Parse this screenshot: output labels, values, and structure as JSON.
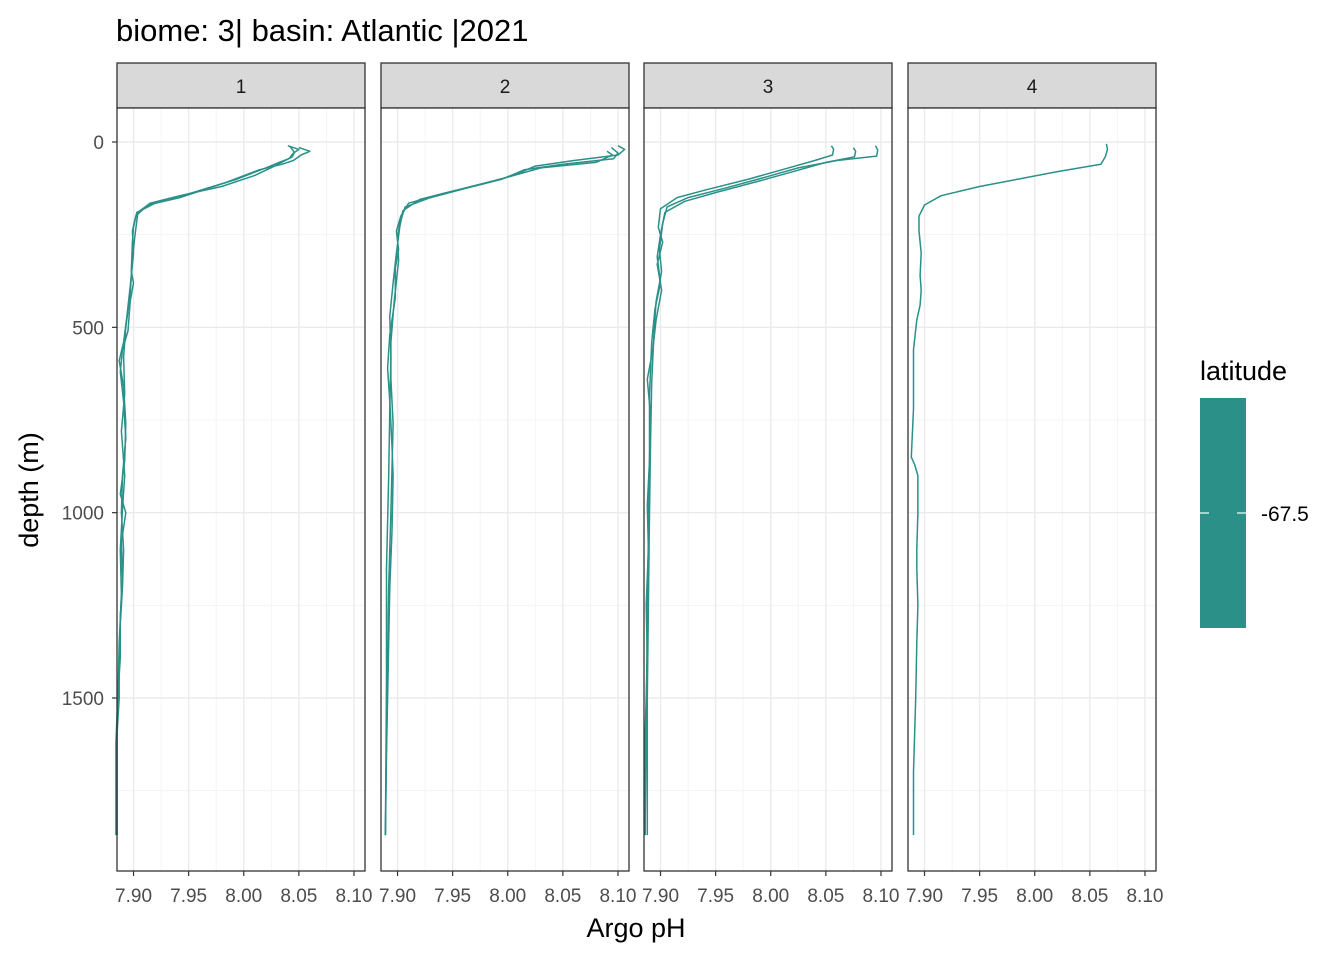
{
  "chart_data": {
    "type": "line",
    "title": "biome: 3| basin: Atlantic |2021",
    "xlabel": "Argo pH",
    "ylabel": "depth (m)",
    "xlim": [
      7.885,
      8.11
    ],
    "ylim": [
      0,
      1880
    ],
    "y_reversed": true,
    "grid": true,
    "x_ticks": [
      "7.90",
      "7.95",
      "8.00",
      "8.05",
      "8.10"
    ],
    "y_ticks": [
      "0",
      "500",
      "1000",
      "1500"
    ],
    "legend": {
      "title": "latitude",
      "label": "-67.5",
      "color": "#2a9088",
      "placement": "right"
    },
    "line_color": "#2a9088",
    "panels": [
      {
        "strip": "1",
        "profiles": [
          {
            "ph": [
              8.04,
              8.05,
              8.045,
              8.041,
              8.032,
              8.02,
              7.994,
              7.95,
              7.923,
              7.903,
              7.9,
              7.899,
              7.898,
              7.9,
              7.897,
              7.895,
              7.89,
              7.888,
              7.891,
              7.893,
              7.89,
              7.889,
              7.891,
              7.89,
              7.888,
              7.887,
              7.887,
              7.885,
              7.885
            ],
            "depth": [
              10,
              20,
              30,
              45,
              55,
              70,
              100,
              140,
              160,
              190,
              230,
              270,
              350,
              380,
              430,
              510,
              560,
              620,
              700,
              800,
              900,
              1000,
              1100,
              1200,
              1300,
              1400,
              1500,
              1600,
              1870
            ]
          },
          {
            "ph": [
              8.05,
              8.06,
              8.052,
              8.045,
              8.035,
              8.014,
              7.983,
              7.942,
              7.913,
              7.902,
              7.899,
              7.9,
              7.897,
              7.894,
              7.891,
              7.887,
              7.891,
              7.893,
              7.892,
              7.888,
              7.893,
              7.889,
              7.89,
              7.888,
              7.888,
              7.886,
              7.885,
              7.885
            ],
            "depth": [
              15,
              25,
              35,
              50,
              60,
              75,
              110,
              150,
              170,
              200,
              240,
              300,
              390,
              470,
              540,
              590,
              660,
              760,
              860,
              950,
              1000,
              1080,
              1180,
              1280,
              1390,
              1490,
              1590,
              1870
            ]
          },
          {
            "ph": [
              8.042,
              8.046,
              8.044,
              8.028,
              8.01,
              7.98,
              7.942,
              7.915,
              7.904,
              7.901,
              7.899,
              7.897,
              7.893,
              7.891,
              7.892,
              7.889,
              7.892,
              7.89,
              7.888,
              7.889,
              7.887,
              7.886,
              7.884,
              7.884
            ],
            "depth": [
              12,
              28,
              40,
              65,
              90,
              120,
              145,
              165,
              190,
              260,
              320,
              410,
              500,
              580,
              680,
              780,
              900,
              990,
              1100,
              1220,
              1350,
              1480,
              1620,
              1870
            ]
          }
        ]
      },
      {
        "strip": "2",
        "profiles": [
          {
            "ph": [
              8.1,
              8.106,
              8.1,
              8.06,
              8.025,
              8.005,
              7.975,
              7.94,
              7.91,
              7.903,
              7.899,
              7.901,
              7.898,
              7.898,
              7.893,
              7.891,
              7.893,
              7.895,
              7.896,
              7.895,
              7.893,
              7.892,
              7.891,
              7.89,
              7.889
            ],
            "depth": [
              10,
              20,
              35,
              50,
              65,
              90,
              115,
              140,
              165,
              200,
              240,
              290,
              340,
              420,
              520,
              610,
              700,
              820,
              900,
              1050,
              1200,
              1350,
              1500,
              1650,
              1870
            ]
          },
          {
            "ph": [
              8.094,
              8.1,
              8.096,
              8.05,
              8.015,
              7.995,
              7.962,
              7.93,
              7.907,
              7.902,
              7.9,
              7.901,
              7.897,
              7.894,
              7.894,
              7.896,
              7.895,
              7.894,
              7.892,
              7.891,
              7.89,
              7.889
            ],
            "depth": [
              15,
              30,
              45,
              60,
              75,
              100,
              125,
              150,
              175,
              220,
              260,
              320,
              430,
              540,
              640,
              760,
              880,
              1000,
              1200,
              1400,
              1600,
              1870
            ]
          },
          {
            "ph": [
              8.09,
              8.095,
              8.08,
              8.03,
              8.0,
              7.96,
              7.92,
              7.905,
              7.902,
              7.899,
              7.896,
              7.893,
              7.894,
              7.893,
              7.892,
              7.89,
              7.89,
              7.889
            ],
            "depth": [
              25,
              35,
              55,
              70,
              95,
              125,
              155,
              185,
              230,
              300,
              380,
              470,
              580,
              720,
              900,
              1150,
              1450,
              1870
            ]
          }
        ]
      },
      {
        "strip": "3",
        "profiles": [
          {
            "ph": [
              8.055,
              8.057,
              8.056,
              8.04,
              8.01,
              7.98,
              7.94,
              7.915,
              7.9,
              7.898,
              7.902,
              7.897,
              7.901,
              7.896,
              7.893,
              7.888,
              7.891,
              7.89,
              7.888,
              7.889,
              7.887,
              7.888,
              7.886,
              7.886
            ],
            "depth": [
              10,
              20,
              35,
              50,
              75,
              100,
              130,
              150,
              180,
              230,
              270,
              330,
              400,
              480,
              560,
              640,
              740,
              860,
              980,
              1100,
              1250,
              1400,
              1600,
              1870
            ]
          },
          {
            "ph": [
              8.075,
              8.077,
              8.076,
              8.05,
              8.02,
              7.99,
              7.952,
              7.922,
              7.904,
              7.9,
              7.897,
              7.9,
              7.895,
              7.892,
              7.89,
              7.89,
              7.889,
              7.888,
              7.887,
              7.886
            ],
            "depth": [
              15,
              25,
              40,
              55,
              80,
              105,
              135,
              160,
              190,
              250,
              310,
              380,
              450,
              540,
              680,
              850,
              1050,
              1300,
              1550,
              1870
            ]
          },
          {
            "ph": [
              8.095,
              8.097,
              8.096,
              8.06,
              8.025,
              7.995,
              7.958,
              7.925,
              7.906,
              7.902,
              7.899,
              7.901,
              7.896,
              7.894,
              7.892,
              7.891,
              7.89,
              7.889,
              7.888,
              7.888
            ],
            "depth": [
              10,
              22,
              38,
              50,
              70,
              95,
              125,
              150,
              175,
              220,
              290,
              350,
              430,
              520,
              650,
              800,
              1000,
              1250,
              1500,
              1870
            ]
          }
        ]
      },
      {
        "strip": "4",
        "profiles": [
          {
            "ph": [
              8.065,
              8.066,
              8.064,
              8.06,
              8.02,
              7.985,
              7.95,
              7.915,
              7.9,
              7.895,
              7.895,
              7.897,
              7.896,
              7.897,
              7.896,
              7.893,
              7.89,
              7.89,
              7.888,
              7.891,
              7.894,
              7.894,
              7.893,
              7.893,
              7.894,
              7.893,
              7.892,
              7.89,
              7.89
            ],
            "depth": [
              5,
              20,
              40,
              60,
              80,
              100,
              120,
              145,
              170,
              200,
              240,
              300,
              360,
              400,
              440,
              480,
              560,
              720,
              850,
              870,
              900,
              1000,
              1100,
              1150,
              1250,
              1350,
              1500,
              1700,
              1870
            ]
          }
        ]
      }
    ]
  }
}
